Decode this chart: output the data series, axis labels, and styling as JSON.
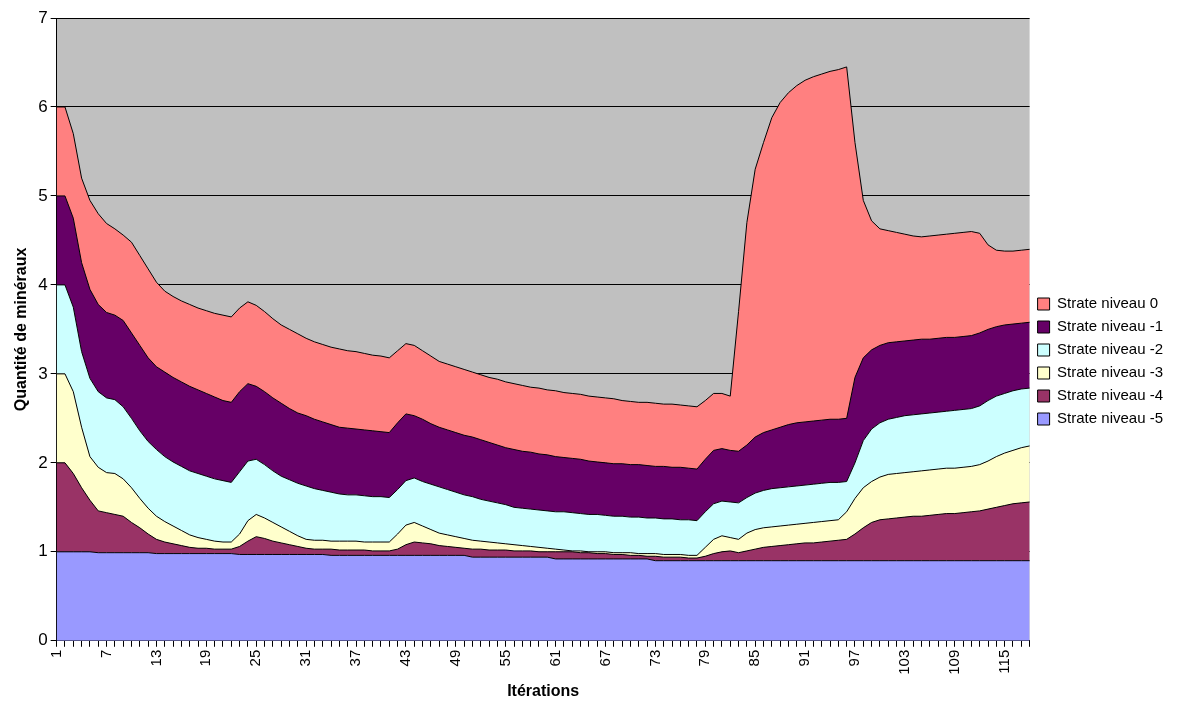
{
  "chart_data": {
    "type": "area",
    "xlabel": "Itérations",
    "ylabel": "Quantité de minéraux",
    "categories": [
      "1",
      null,
      null,
      null,
      null,
      null,
      "7",
      null,
      null,
      null,
      null,
      null,
      "13",
      null,
      null,
      null,
      null,
      null,
      "19",
      null,
      null,
      null,
      null,
      null,
      "25",
      null,
      null,
      null,
      null,
      null,
      "31",
      null,
      null,
      null,
      null,
      null,
      "37",
      null,
      null,
      null,
      null,
      null,
      "43",
      null,
      null,
      null,
      null,
      null,
      "49",
      null,
      null,
      null,
      null,
      null,
      "55",
      null,
      null,
      null,
      null,
      null,
      "61",
      null,
      null,
      null,
      null,
      null,
      "67",
      null,
      null,
      null,
      null,
      null,
      "73",
      null,
      null,
      null,
      null,
      null,
      "79",
      null,
      null,
      null,
      null,
      null,
      "85",
      null,
      null,
      null,
      null,
      null,
      "91",
      null,
      null,
      null,
      null,
      null,
      "97",
      null,
      null,
      null,
      null,
      null,
      "103",
      null,
      null,
      null,
      null,
      null,
      "109",
      null,
      null,
      null,
      null,
      null,
      "115",
      null,
      null,
      null
    ],
    "stacked": true,
    "ylim": [
      0,
      7
    ],
    "yticks": [
      0,
      1,
      2,
      3,
      4,
      5,
      6,
      7
    ],
    "grid": "y",
    "legend": "right",
    "series": [
      {
        "name": "Strate niveau -5",
        "color": "#9999ff",
        "values": [
          1,
          1,
          1,
          1,
          1,
          0.99,
          0.99,
          0.99,
          0.99,
          0.99,
          0.99,
          0.99,
          0.98,
          0.98,
          0.98,
          0.98,
          0.98,
          0.98,
          0.98,
          0.98,
          0.98,
          0.98,
          0.97,
          0.97,
          0.97,
          0.97,
          0.97,
          0.97,
          0.97,
          0.97,
          0.97,
          0.97,
          0.97,
          0.96,
          0.96,
          0.96,
          0.96,
          0.96,
          0.96,
          0.96,
          0.96,
          0.96,
          0.96,
          0.96,
          0.96,
          0.96,
          0.96,
          0.96,
          0.96,
          0.96,
          0.94,
          0.94,
          0.94,
          0.94,
          0.94,
          0.94,
          0.94,
          0.94,
          0.94,
          0.94,
          0.92,
          0.92,
          0.92,
          0.92,
          0.92,
          0.92,
          0.92,
          0.92,
          0.92,
          0.92,
          0.92,
          0.92,
          0.9,
          0.9,
          0.9,
          0.9,
          0.9,
          0.9,
          0.9,
          0.9,
          0.9,
          0.9,
          0.9,
          0.9,
          0.9,
          0.9,
          0.9,
          0.9,
          0.9,
          0.9,
          0.9,
          0.9,
          0.9,
          0.9,
          0.9,
          0.9,
          0.9,
          0.9,
          0.9,
          0.9,
          0.9,
          0.9,
          0.9,
          0.9,
          0.9,
          0.9,
          0.9,
          0.9,
          0.9,
          0.9,
          0.9,
          0.9,
          0.9,
          0.9,
          0.9,
          0.9,
          0.9,
          0.9
        ]
      },
      {
        "name": "Strate niveau -4",
        "color": "#993366",
        "values": [
          1,
          1,
          0.88,
          0.72,
          0.58,
          0.47,
          0.45,
          0.43,
          0.41,
          0.34,
          0.28,
          0.21,
          0.16,
          0.13,
          0.11,
          0.09,
          0.07,
          0.06,
          0.06,
          0.05,
          0.05,
          0.05,
          0.09,
          0.15,
          0.2,
          0.18,
          0.15,
          0.13,
          0.11,
          0.09,
          0.07,
          0.06,
          0.06,
          0.07,
          0.06,
          0.06,
          0.06,
          0.06,
          0.05,
          0.05,
          0.05,
          0.07,
          0.12,
          0.15,
          0.14,
          0.13,
          0.11,
          0.1,
          0.09,
          0.08,
          0.09,
          0.09,
          0.08,
          0.08,
          0.08,
          0.07,
          0.07,
          0.07,
          0.06,
          0.06,
          0.08,
          0.08,
          0.08,
          0.07,
          0.07,
          0.06,
          0.06,
          0.05,
          0.05,
          0.04,
          0.04,
          0.03,
          0.05,
          0.04,
          0.04,
          0.04,
          0.03,
          0.03,
          0.05,
          0.08,
          0.1,
          0.11,
          0.09,
          0.11,
          0.13,
          0.15,
          0.16,
          0.17,
          0.18,
          0.19,
          0.2,
          0.2,
          0.21,
          0.22,
          0.23,
          0.24,
          0.3,
          0.37,
          0.43,
          0.46,
          0.47,
          0.48,
          0.49,
          0.5,
          0.5,
          0.51,
          0.52,
          0.53,
          0.53,
          0.54,
          0.55,
          0.56,
          0.58,
          0.6,
          0.62,
          0.64,
          0.65,
          0.66
        ]
      },
      {
        "name": "Strate niveau -3",
        "color": "#ffffcc",
        "values": [
          1,
          1,
          0.92,
          0.68,
          0.49,
          0.49,
          0.45,
          0.46,
          0.42,
          0.39,
          0.33,
          0.29,
          0.26,
          0.23,
          0.2,
          0.17,
          0.14,
          0.12,
          0.1,
          0.09,
          0.08,
          0.08,
          0.14,
          0.23,
          0.25,
          0.23,
          0.21,
          0.18,
          0.15,
          0.12,
          0.1,
          0.1,
          0.1,
          0.09,
          0.1,
          0.1,
          0.1,
          0.09,
          0.1,
          0.1,
          0.1,
          0.17,
          0.22,
          0.22,
          0.19,
          0.16,
          0.14,
          0.13,
          0.12,
          0.11,
          0.1,
          0.09,
          0.09,
          0.08,
          0.07,
          0.07,
          0.06,
          0.05,
          0.05,
          0.04,
          0.03,
          0.02,
          0.01,
          0.02,
          0.01,
          0.02,
          0.02,
          0.02,
          0.02,
          0.03,
          0.02,
          0.03,
          0.03,
          0.03,
          0.03,
          0.03,
          0.03,
          0.03,
          0.1,
          0.16,
          0.18,
          0.15,
          0.15,
          0.2,
          0.22,
          0.22,
          0.22,
          0.22,
          0.22,
          0.22,
          0.22,
          0.23,
          0.23,
          0.23,
          0.23,
          0.31,
          0.4,
          0.45,
          0.46,
          0.48,
          0.5,
          0.5,
          0.5,
          0.5,
          0.51,
          0.51,
          0.51,
          0.51,
          0.51,
          0.51,
          0.51,
          0.52,
          0.54,
          0.57,
          0.59,
          0.6,
          0.62,
          0.63
        ]
      },
      {
        "name": "Strate niveau -2",
        "color": "#ccffff",
        "values": [
          1,
          1,
          0.95,
          0.85,
          0.88,
          0.85,
          0.84,
          0.83,
          0.81,
          0.78,
          0.76,
          0.75,
          0.75,
          0.73,
          0.72,
          0.72,
          0.72,
          0.72,
          0.71,
          0.7,
          0.69,
          0.67,
          0.7,
          0.67,
          0.62,
          0.6,
          0.58,
          0.57,
          0.58,
          0.59,
          0.6,
          0.58,
          0.56,
          0.55,
          0.53,
          0.52,
          0.52,
          0.52,
          0.51,
          0.51,
          0.5,
          0.5,
          0.5,
          0.5,
          0.5,
          0.51,
          0.52,
          0.51,
          0.5,
          0.49,
          0.49,
          0.47,
          0.46,
          0.45,
          0.44,
          0.42,
          0.42,
          0.42,
          0.42,
          0.42,
          0.42,
          0.43,
          0.43,
          0.42,
          0.42,
          0.42,
          0.41,
          0.41,
          0.41,
          0.4,
          0.41,
          0.4,
          0.4,
          0.4,
          0.4,
          0.39,
          0.4,
          0.39,
          0.4,
          0.4,
          0.39,
          0.4,
          0.41,
          0.4,
          0.41,
          0.42,
          0.43,
          0.43,
          0.43,
          0.43,
          0.43,
          0.43,
          0.43,
          0.43,
          0.42,
          0.34,
          0.4,
          0.53,
          0.59,
          0.61,
          0.62,
          0.63,
          0.64,
          0.64,
          0.64,
          0.64,
          0.64,
          0.64,
          0.65,
          0.65,
          0.65,
          0.66,
          0.68,
          0.68,
          0.67,
          0.67,
          0.66,
          0.65
        ]
      },
      {
        "name": "Strate niveau -1",
        "color": "#660066",
        "values": [
          1,
          1,
          1,
          1,
          1,
          0.98,
          0.96,
          0.95,
          0.97,
          0.96,
          0.96,
          0.94,
          0.93,
          0.95,
          0.95,
          0.95,
          0.95,
          0.94,
          0.93,
          0.92,
          0.9,
          0.9,
          0.9,
          0.87,
          0.82,
          0.82,
          0.82,
          0.82,
          0.8,
          0.79,
          0.79,
          0.78,
          0.77,
          0.76,
          0.75,
          0.75,
          0.74,
          0.74,
          0.74,
          0.73,
          0.73,
          0.75,
          0.75,
          0.7,
          0.7,
          0.68,
          0.67,
          0.67,
          0.67,
          0.67,
          0.67,
          0.67,
          0.66,
          0.65,
          0.64,
          0.65,
          0.64,
          0.64,
          0.63,
          0.63,
          0.62,
          0.61,
          0.61,
          0.61,
          0.6,
          0.59,
          0.59,
          0.59,
          0.59,
          0.59,
          0.59,
          0.59,
          0.58,
          0.59,
          0.58,
          0.59,
          0.58,
          0.58,
          0.59,
          0.6,
          0.59,
          0.58,
          0.58,
          0.59,
          0.63,
          0.65,
          0.66,
          0.68,
          0.7,
          0.71,
          0.71,
          0.71,
          0.71,
          0.71,
          0.71,
          0.71,
          0.96,
          0.93,
          0.89,
          0.87,
          0.86,
          0.85,
          0.84,
          0.84,
          0.84,
          0.83,
          0.83,
          0.83,
          0.82,
          0.82,
          0.82,
          0.82,
          0.8,
          0.78,
          0.77,
          0.75,
          0.74,
          0.74
        ]
      },
      {
        "name": "Strate niveau 0",
        "color": "#ff8080",
        "values": [
          1,
          1,
          0.95,
          0.95,
          1,
          1.02,
          1,
          0.97,
          0.96,
          1.02,
          1.01,
          1,
          0.95,
          0.91,
          0.91,
          0.91,
          0.92,
          0.92,
          0.93,
          0.94,
          0.96,
          0.96,
          0.94,
          0.92,
          0.91,
          0.9,
          0.89,
          0.88,
          0.89,
          0.89,
          0.87,
          0.87,
          0.87,
          0.87,
          0.88,
          0.87,
          0.87,
          0.86,
          0.85,
          0.85,
          0.84,
          0.81,
          0.79,
          0.79,
          0.77,
          0.76,
          0.74,
          0.74,
          0.74,
          0.74,
          0.73,
          0.73,
          0.73,
          0.74,
          0.74,
          0.74,
          0.74,
          0.73,
          0.74,
          0.73,
          0.74,
          0.73,
          0.73,
          0.73,
          0.73,
          0.73,
          0.73,
          0.73,
          0.71,
          0.71,
          0.7,
          0.71,
          0.71,
          0.7,
          0.71,
          0.7,
          0.7,
          0.7,
          0.66,
          0.64,
          0.62,
          0.61,
          1.57,
          2.5,
          3.01,
          3.26,
          3.51,
          3.65,
          3.73,
          3.79,
          3.84,
          3.87,
          3.89,
          3.91,
          3.93,
          3.95,
          2.64,
          1.77,
          1.45,
          1.31,
          1.26,
          1.23,
          1.2,
          1.17,
          1.15,
          1.16,
          1.16,
          1.16,
          1.17,
          1.17,
          1.17,
          1.12,
          0.95,
          0.86,
          0.83,
          0.82,
          0.82,
          0.82
        ]
      }
    ]
  }
}
